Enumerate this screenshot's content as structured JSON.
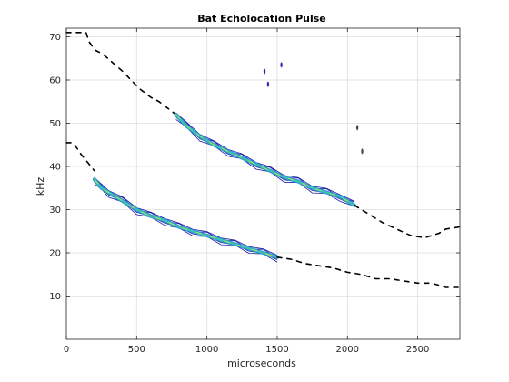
{
  "chart_data": {
    "type": "contour",
    "title": "Bat Echolocation Pulse",
    "xlabel": "microseconds",
    "ylabel": "kHz",
    "xlim": [
      0,
      2800
    ],
    "ylim": [
      0,
      72
    ],
    "xticks": [
      0,
      500,
      1000,
      1500,
      2000,
      2500
    ],
    "yticks": [
      10,
      20,
      30,
      40,
      50,
      60,
      70
    ],
    "grid": true,
    "series": [
      {
        "kind": "upper-faint-trace",
        "color": "#000000",
        "points": [
          [
            0,
            71
          ],
          [
            140,
            71
          ],
          [
            160,
            69
          ],
          [
            200,
            67
          ],
          [
            260,
            66
          ],
          [
            330,
            64
          ],
          [
            400,
            62
          ],
          [
            460,
            60
          ],
          [
            520,
            58
          ],
          [
            600,
            56
          ],
          [
            660,
            55
          ],
          [
            700,
            54
          ],
          [
            740,
            53
          ],
          [
            780,
            52
          ]
        ]
      },
      {
        "kind": "upper-ridge",
        "color": "#1a1aa6",
        "points": [
          [
            780,
            52
          ],
          [
            850,
            49.5
          ],
          [
            950,
            47
          ],
          [
            1050,
            45
          ],
          [
            1150,
            43.5
          ],
          [
            1250,
            42
          ],
          [
            1350,
            40.5
          ],
          [
            1450,
            39
          ],
          [
            1550,
            37.5
          ],
          [
            1650,
            36.5
          ],
          [
            1750,
            35
          ],
          [
            1850,
            34
          ],
          [
            1950,
            33
          ],
          [
            2050,
            31
          ]
        ]
      },
      {
        "kind": "upper-faint-tail",
        "color": "#000000",
        "points": [
          [
            2050,
            31
          ],
          [
            2150,
            29
          ],
          [
            2250,
            27
          ],
          [
            2350,
            25.5
          ],
          [
            2450,
            24
          ],
          [
            2550,
            23.5
          ],
          [
            2650,
            24.5
          ],
          [
            2700,
            25.5
          ],
          [
            2800,
            26
          ]
        ]
      },
      {
        "kind": "lower-faint-head",
        "color": "#000000",
        "points": [
          [
            0,
            45.5
          ],
          [
            50,
            45.5
          ],
          [
            100,
            43
          ],
          [
            150,
            41
          ],
          [
            200,
            39
          ]
        ]
      },
      {
        "kind": "lower-ridge",
        "color": "#1a1aa6",
        "points": [
          [
            200,
            37
          ],
          [
            250,
            35
          ],
          [
            300,
            34
          ],
          [
            400,
            32
          ],
          [
            500,
            30
          ],
          [
            600,
            28.5
          ],
          [
            700,
            27.5
          ],
          [
            800,
            26
          ],
          [
            900,
            25
          ],
          [
            1000,
            24
          ],
          [
            1100,
            23
          ],
          [
            1200,
            22
          ],
          [
            1300,
            21
          ],
          [
            1400,
            20
          ],
          [
            1500,
            19
          ]
        ]
      },
      {
        "kind": "lower-faint-tail",
        "color": "#000000",
        "points": [
          [
            1500,
            19
          ],
          [
            1600,
            18.5
          ],
          [
            1700,
            17.5
          ],
          [
            1800,
            17
          ],
          [
            1900,
            16.5
          ],
          [
            2000,
            15.5
          ],
          [
            2100,
            15
          ],
          [
            2200,
            14
          ],
          [
            2300,
            14
          ],
          [
            2400,
            13.5
          ],
          [
            2500,
            13
          ],
          [
            2600,
            13
          ],
          [
            2700,
            12
          ],
          [
            2800,
            12
          ]
        ]
      }
    ],
    "spots": [
      {
        "x": 1410,
        "y": 62,
        "color": "#2a2ab0"
      },
      {
        "x": 1435,
        "y": 59,
        "color": "#2a2ab0"
      },
      {
        "x": 1530,
        "y": 63.5,
        "color": "#2a2ab0"
      },
      {
        "x": 2070,
        "y": 49,
        "color": "#4a4a4a"
      },
      {
        "x": 2105,
        "y": 43.5,
        "color": "#4a4a4a"
      }
    ],
    "colors": {
      "ridge_outer": "#1a1aa6",
      "ridge_mid": "#2a8fd6",
      "ridge_inner": "#3cc3b4",
      "ridge_core": "#b7e34a",
      "faint": "#000000",
      "grid": "#dedede",
      "axes": "#262626"
    }
  }
}
